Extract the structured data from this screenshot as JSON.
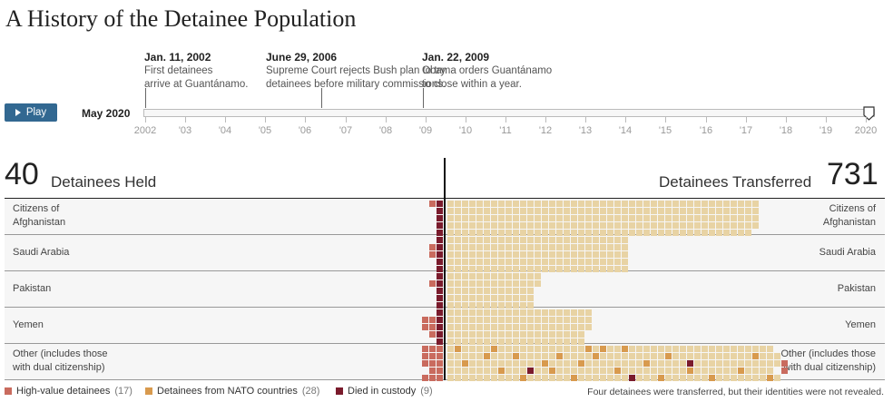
{
  "title": "A History of the Detainee Population",
  "timeline": {
    "events": [
      {
        "date": "Jan. 11, 2002",
        "lines": [
          "First detainees",
          "arrive at Guantánamo."
        ]
      },
      {
        "date": "June 29, 2006",
        "lines": [
          "Supreme Court rejects Bush plan to try",
          "detainees before military commissions."
        ]
      },
      {
        "date": "Jan. 22, 2009",
        "lines": [
          "Obama orders Guantánamo",
          "to close within a year."
        ]
      }
    ],
    "play_label": "Play",
    "current_date": "May 2020",
    "tick_labels": [
      "2002",
      "'03",
      "'04",
      "'05",
      "'06",
      "'07",
      "'08",
      "'09",
      "'10",
      "'11",
      "'12",
      "'13",
      "'14",
      "'15",
      "'16",
      "'17",
      "'18",
      "'19",
      "2020"
    ]
  },
  "held": {
    "count": "40",
    "label": "Detainees Held"
  },
  "transferred": {
    "count": "731",
    "label": "Detainees Transferred"
  },
  "rows": [
    {
      "label": [
        "Citizens of",
        "Afghanistan"
      ]
    },
    {
      "label": [
        "Saudi Arabia"
      ]
    },
    {
      "label": [
        "Pakistan"
      ]
    },
    {
      "label": [
        "Yemen"
      ]
    },
    {
      "label": [
        "Other (includes those",
        "with dual citizenship)"
      ]
    }
  ],
  "legend": [
    {
      "label": "High-value detainees",
      "count": "(17)",
      "color": "#c96b5e"
    },
    {
      "label": "Detainees from NATO countries",
      "count": "(28)",
      "color": "#d89a4e"
    },
    {
      "label": "Died in custody",
      "count": "(9)",
      "color": "#7a1b2c"
    }
  ],
  "colors": {
    "transferred": "#e8d3a4",
    "held": "#c96b5e",
    "died": "#7a1b2c",
    "nato": "#d89a4e"
  },
  "footnote": "Four detainees were transferred, but their identities were not revealed."
}
